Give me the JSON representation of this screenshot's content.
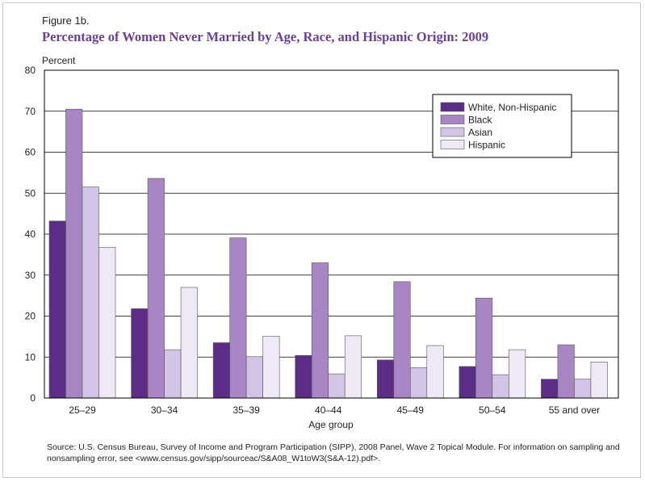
{
  "figure_label": "Figure 1b.",
  "chart_data": {
    "type": "bar",
    "title": "Percentage of Women Never Married by Age, Race, and Hispanic Origin: 2009",
    "ylabel": "Percent",
    "xlabel": "Age group",
    "ylim": [
      0,
      80
    ],
    "yticks": [
      0,
      10,
      20,
      30,
      40,
      50,
      60,
      70,
      80
    ],
    "grid": true,
    "legend_position": "top-right",
    "categories": [
      "25–29",
      "30–34",
      "35–39",
      "40–44",
      "45–49",
      "50–54",
      "55 and over"
    ],
    "series": [
      {
        "name": "White, Non-Hispanic",
        "color": "#5b2d86",
        "values": [
          43.2,
          21.8,
          13.5,
          10.4,
          9.3,
          7.7,
          4.6
        ]
      },
      {
        "name": "Black",
        "color": "#a886c3",
        "values": [
          70.5,
          53.6,
          39.1,
          33.0,
          28.4,
          24.4,
          13.0
        ]
      },
      {
        "name": "Asian",
        "color": "#d2c4e4",
        "values": [
          51.5,
          11.8,
          10.1,
          5.9,
          7.4,
          5.7,
          4.6
        ]
      },
      {
        "name": "Hispanic",
        "color": "#eee9f4",
        "values": [
          36.8,
          27.0,
          15.1,
          15.2,
          12.8,
          11.8,
          8.8
        ]
      }
    ]
  },
  "source": "Source: U.S. Census Bureau, Survey of Income and Program Participation (SIPP), 2008 Panel, Wave 2 Topical Module. For information on sampling and nonsampling error, see <www.census.gov/sipp/sourceac/S&A08_W1toW3(S&A-12).pdf>."
}
